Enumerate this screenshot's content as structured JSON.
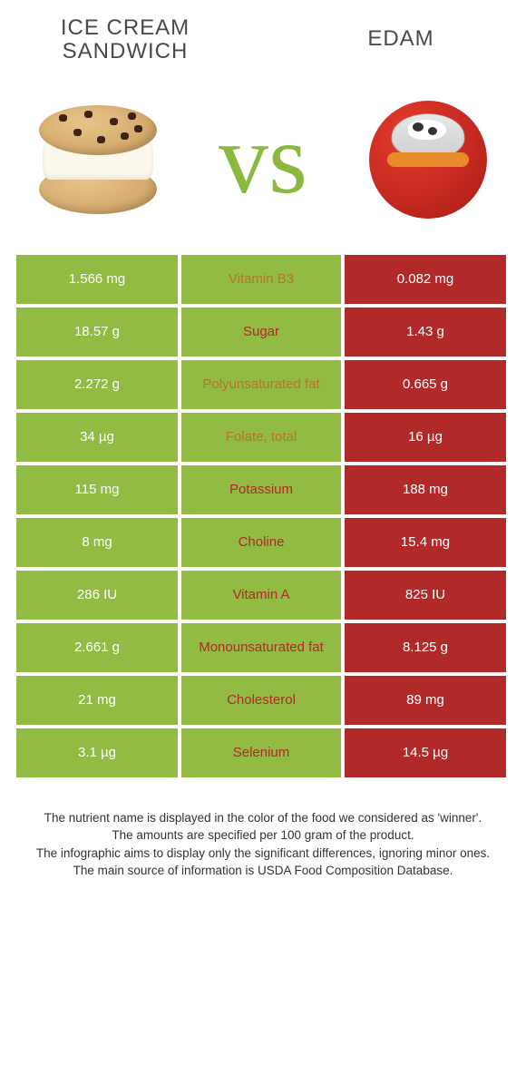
{
  "header": {
    "left_title": "ICE CREAM SANDWICH",
    "right_title": "EDAM",
    "vs_text": "vs"
  },
  "colors": {
    "green": "#91bb42",
    "crimson": "#b22929",
    "green_text": "#7fa833",
    "crimson_text": "#b22929",
    "background": "#ffffff"
  },
  "table": {
    "rows": [
      {
        "left": "1.566 mg",
        "label": "Vitamin B3",
        "right": "0.082 mg",
        "winner": "left",
        "right_bg": "crimson"
      },
      {
        "left": "18.57 g",
        "label": "Sugar",
        "right": "1.43 g",
        "winner": "right",
        "right_bg": "crimson"
      },
      {
        "left": "2.272 g",
        "label": "Polyunsaturated fat",
        "right": "0.665 g",
        "winner": "left",
        "right_bg": "crimson"
      },
      {
        "left": "34 µg",
        "label": "Folate, total",
        "right": "16 µg",
        "winner": "left",
        "right_bg": "crimson"
      },
      {
        "left": "115 mg",
        "label": "Potassium",
        "right": "188 mg",
        "winner": "right",
        "right_bg": "crimson"
      },
      {
        "left": "8 mg",
        "label": "Choline",
        "right": "15.4 mg",
        "winner": "right",
        "right_bg": "crimson"
      },
      {
        "left": "286 IU",
        "label": "Vitamin A",
        "right": "825 IU",
        "winner": "right",
        "right_bg": "crimson"
      },
      {
        "left": "2.661 g",
        "label": "Monounsaturated fat",
        "right": "8.125 g",
        "winner": "right",
        "right_bg": "crimson"
      },
      {
        "left": "21 mg",
        "label": "Cholesterol",
        "right": "89 mg",
        "winner": "right",
        "right_bg": "crimson"
      },
      {
        "left": "3.1 µg",
        "label": "Selenium",
        "right": "14.5 µg",
        "winner": "right",
        "right_bg": "crimson"
      }
    ]
  },
  "footnotes": {
    "line1": "The nutrient name is displayed in the color of the food we considered as 'winner'.",
    "line2": "The amounts are specified per 100 gram of the product.",
    "line3": "The infographic aims to display only the significant differences, ignoring minor ones.",
    "line4": "The main source of information is USDA Food Composition Database."
  }
}
